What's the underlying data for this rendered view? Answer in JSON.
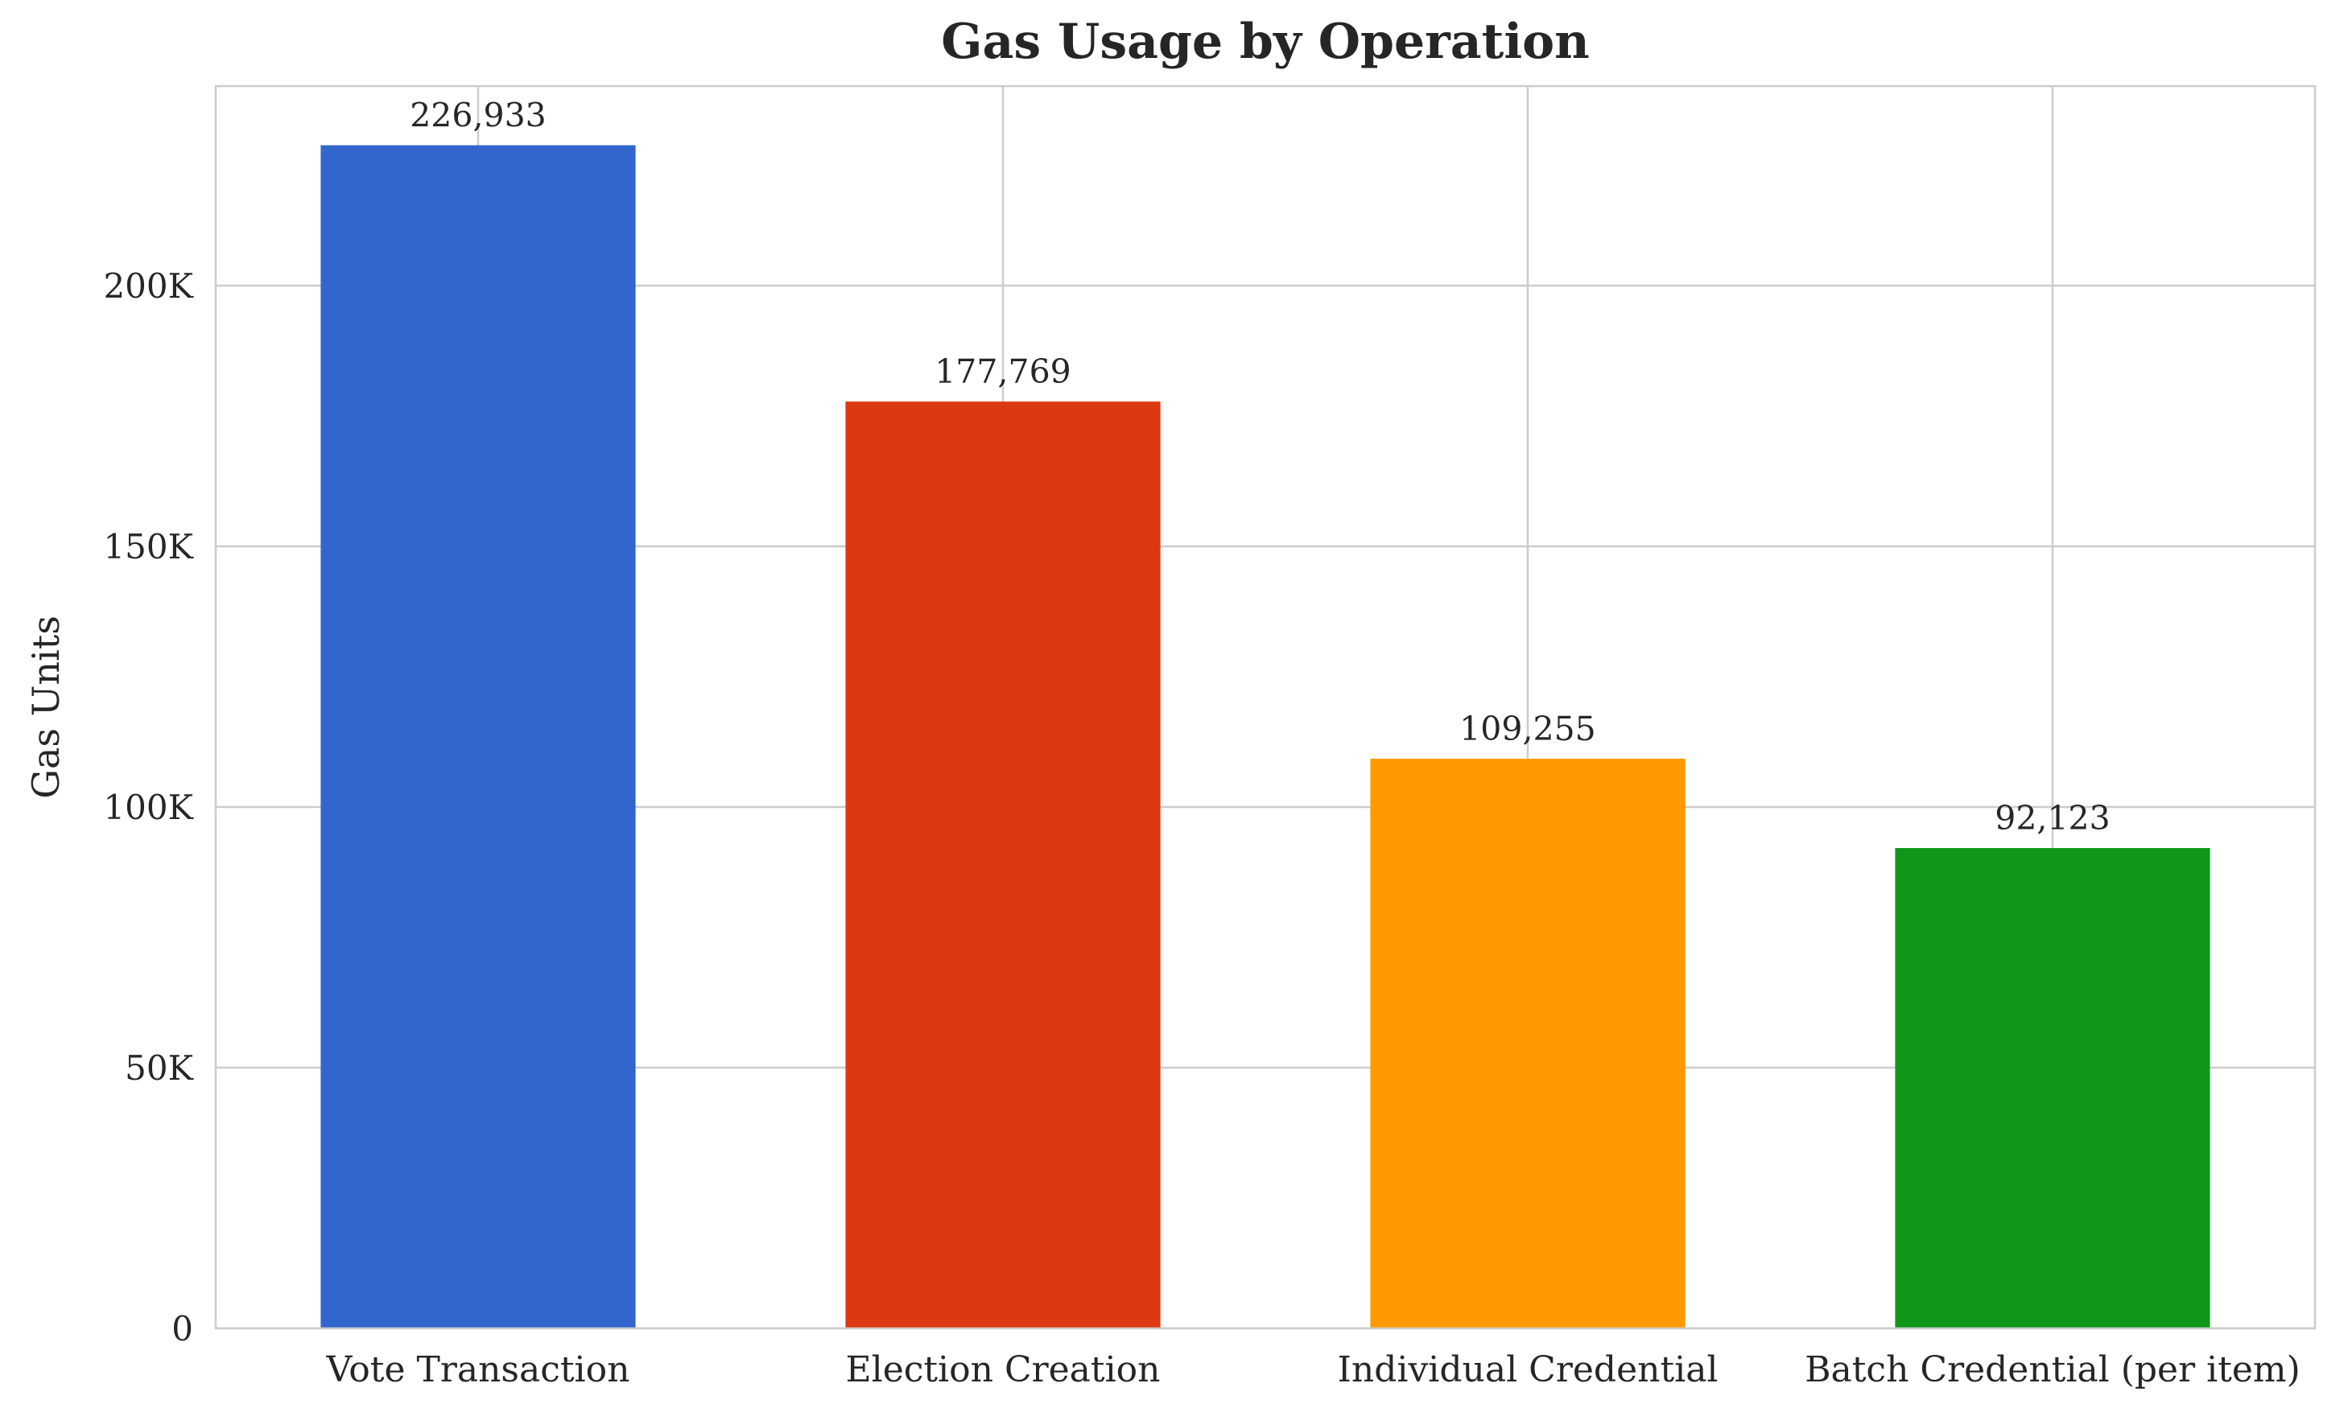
{
  "chart_data": {
    "type": "bar",
    "title": "Gas Usage by Operation",
    "xlabel": "",
    "ylabel": "Gas Units",
    "categories": [
      "Vote Transaction",
      "Election Creation",
      "Individual Credential",
      "Batch Credential (per item)"
    ],
    "values": [
      226933,
      177769,
      109255,
      92123
    ],
    "value_labels": [
      "226,933",
      "177,769",
      "109,255",
      "92,123"
    ],
    "colors": [
      "#3366cc",
      "#dc3912",
      "#ff9900",
      "#109618"
    ],
    "ylim": [
      0,
      238280
    ],
    "yticks": [
      0,
      50000,
      100000,
      150000,
      200000
    ],
    "ytick_labels": [
      "0",
      "50K",
      "100K",
      "150K",
      "200K"
    ],
    "grid": true,
    "legend": "none"
  }
}
